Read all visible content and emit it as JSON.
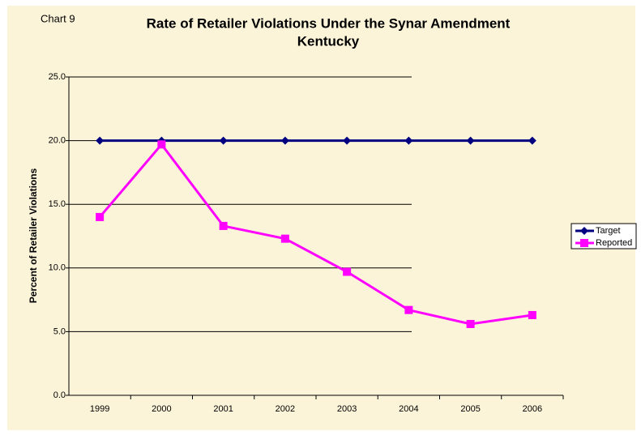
{
  "chart_data": {
    "type": "line",
    "label": "Chart 9",
    "title": [
      "Rate of Retailer Violations Under the Synar Amendment",
      "Kentucky"
    ],
    "y_label": "Percent of Retailer Violations",
    "categories": [
      "1999",
      "2000",
      "2001",
      "2002",
      "2003",
      "2004",
      "2005",
      "2006"
    ],
    "series": [
      {
        "name": "Target",
        "color": "#000080",
        "marker": "diamond",
        "values": [
          20,
          20,
          20,
          20,
          20,
          20,
          20,
          20
        ]
      },
      {
        "name": "Reported",
        "color": "#ff00ff",
        "marker": "square",
        "values": [
          14.0,
          19.7,
          13.3,
          12.3,
          9.7,
          6.7,
          5.6,
          6.3
        ]
      }
    ],
    "ylim": [
      0,
      25
    ],
    "yticks": [
      {
        "value": 0,
        "label": "0.0"
      },
      {
        "value": 5,
        "label": "5.0"
      },
      {
        "value": 10,
        "label": "10.0"
      },
      {
        "value": 15,
        "label": "15.0"
      },
      {
        "value": 20,
        "label": "20.0"
      },
      {
        "value": 25,
        "label": "25.0"
      }
    ],
    "grid": true,
    "legend": "right"
  }
}
